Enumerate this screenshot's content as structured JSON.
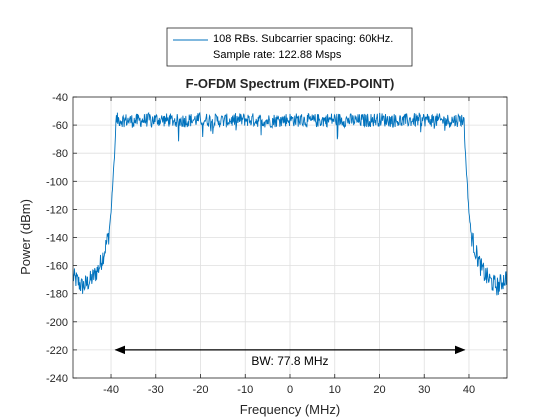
{
  "chart_data": {
    "type": "line",
    "title": "F-OFDM Spectrum (FIXED-POINT)",
    "xlabel": "Frequency (MHz)",
    "ylabel": "Power (dBm)",
    "xlim": [
      -48.5,
      48.5
    ],
    "ylim": [
      -240,
      -40
    ],
    "xticks": [
      -40,
      -30,
      -20,
      -10,
      0,
      10,
      20,
      30,
      40
    ],
    "yticks": [
      -40,
      -60,
      -80,
      -100,
      -120,
      -140,
      -160,
      -180,
      -200,
      -220,
      -240
    ],
    "grid": true,
    "legend": {
      "placement": "top-center, above plot",
      "entries": [
        {
          "line1": "108 RBs. Subcarrier spacing: 60kHz.",
          "line2": "Sample rate: 122.88 Msps",
          "color": "#0072BD"
        }
      ]
    },
    "series": [
      {
        "color": "#0072BD",
        "x": [
          -48.5,
          -47.5,
          -46.5,
          -45.5,
          -44.5,
          -43.5,
          -42.5,
          -41.5,
          -40.5,
          -40.0,
          -39.5,
          -39.0,
          -38.9,
          -35,
          -30,
          -25,
          -20,
          -15,
          -10,
          -5,
          0,
          5,
          10,
          15,
          20,
          25,
          30,
          35,
          38.9,
          39.0,
          39.5,
          40.0,
          40.5,
          41.5,
          42.5,
          43.5,
          44.5,
          45.5,
          46.5,
          47.5,
          48.5
        ],
        "y": [
          -168,
          -171,
          -175,
          -173,
          -170,
          -166,
          -160,
          -150,
          -138,
          -122,
          -96,
          -68,
          -56,
          -57,
          -56,
          -57,
          -56,
          -57,
          -56,
          -57,
          -56,
          -57,
          -56,
          -57,
          -56,
          -57,
          -56,
          -57,
          -56,
          -68,
          -96,
          -122,
          -138,
          -150,
          -160,
          -166,
          -170,
          -173,
          -175,
          -171,
          -168
        ],
        "noise_amplitude_passband": 5,
        "noise_amplitude_stopband": 7
      }
    ],
    "annotations": [
      {
        "type": "double-arrow",
        "x_from": -39,
        "x_to": 39,
        "y": -220
      },
      {
        "type": "text",
        "text": "BW: 77.8 MHz",
        "x": 0,
        "y": -228
      }
    ]
  }
}
